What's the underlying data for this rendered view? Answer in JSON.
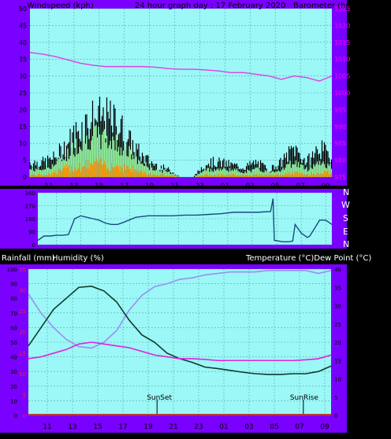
{
  "chart_data": [
    {
      "type": "line",
      "title": "24 hour graph day : 17 February 2020",
      "ylabel_left": "Windspeed (kph)",
      "ylabel_right": "Barometer (hpa)",
      "x_ticks": [
        "11",
        "13",
        "15",
        "17",
        "19",
        "21",
        "23",
        "01",
        "03",
        "05",
        "07",
        "09"
      ],
      "y_ticks_left": [
        0,
        5,
        10,
        15,
        20,
        25,
        30,
        35,
        40,
        45,
        50
      ],
      "y_ticks_right": [
        975,
        980,
        985,
        990,
        995,
        1000,
        1005,
        1010,
        1015,
        1020,
        1025
      ],
      "ylim_left": [
        0,
        50
      ],
      "ylim_right": [
        975,
        1025
      ],
      "grid": true,
      "colors": {
        "plot_bg": "#9cf7f7",
        "frame": "#7a00ff",
        "gust": "#000000",
        "avg": "#90ee90",
        "wind": "#ff9900",
        "baro": "#e040e0",
        "right_axis": "#ff00ff"
      },
      "series": [
        {
          "values_hours": [
            0,
            1,
            2,
            3,
            4,
            5,
            6,
            7,
            8,
            9,
            10,
            11,
            12,
            13,
            14,
            15,
            16,
            17,
            18,
            19,
            20,
            21,
            22,
            23,
            24
          ],
          "gust_env": [
            6,
            6,
            8,
            14,
            20,
            24,
            24,
            22,
            14,
            8,
            5,
            3,
            0,
            0,
            6,
            6,
            5,
            4,
            6,
            3,
            6,
            12,
            6,
            12,
            8
          ],
          "avg_env": [
            3,
            3,
            5,
            9,
            14,
            16,
            15,
            13,
            9,
            5,
            3,
            2,
            0,
            0,
            3,
            3,
            3,
            2,
            3,
            2,
            3,
            6,
            3,
            6,
            4
          ],
          "wind_env": [
            1,
            1,
            2,
            4,
            5,
            6,
            6,
            5,
            4,
            2,
            1,
            1,
            0,
            0,
            1,
            1,
            1,
            1,
            1,
            1,
            1,
            2,
            1,
            2,
            2
          ]
        },
        {
          "hours": [
            0,
            1,
            2,
            3,
            4,
            5,
            6,
            7,
            8,
            9,
            10,
            11,
            12,
            13,
            14,
            15,
            16,
            17,
            18,
            19,
            20,
            21,
            22,
            23,
            24
          ],
          "values": [
            1012.0,
            1011.5,
            1010.8,
            1009.8,
            1008.8,
            1008.2,
            1007.8,
            1007.8,
            1007.8,
            1007.8,
            1007.6,
            1007.2,
            1007.0,
            1007.0,
            1006.8,
            1006.5,
            1006.0,
            1006.0,
            1005.5,
            1005.0,
            1004.0,
            1005.0,
            1004.5,
            1003.5,
            1005.0
          ]
        }
      ]
    },
    {
      "type": "line",
      "title": "",
      "direction_labels": [
        "N",
        "W",
        "S",
        "E",
        "N"
      ],
      "y_ticks": [
        360,
        270,
        180,
        90,
        0
      ],
      "ylim": [
        0,
        360
      ],
      "x_ticks": [
        "11",
        "13",
        "15",
        "17",
        "19",
        "21",
        "23",
        "01",
        "03",
        "05",
        "07",
        "09"
      ],
      "series": [
        {
          "hours": [
            0,
            0.5,
            1,
            1.5,
            2,
            2.5,
            3,
            3.5,
            4,
            4.5,
            5,
            5.5,
            6,
            6.5,
            7,
            8,
            9,
            10,
            11,
            12,
            13,
            14,
            15,
            16,
            17,
            18,
            19,
            19.2,
            19.3,
            20,
            20.5,
            20.8,
            21,
            21.5,
            22,
            22.2,
            23,
            23.5,
            24
          ],
          "values": [
            30,
            60,
            60,
            65,
            65,
            70,
            180,
            200,
            190,
            180,
            170,
            150,
            140,
            140,
            155,
            190,
            200,
            200,
            200,
            205,
            205,
            210,
            215,
            225,
            225,
            225,
            230,
            320,
            30,
            20,
            20,
            25,
            140,
            80,
            50,
            60,
            170,
            170,
            140
          ]
        }
      ]
    },
    {
      "type": "line",
      "title": "",
      "ylabel_left_1": "Rainfall (mm)",
      "ylabel_left_2": "Humidity (%)",
      "ylabel_right": "Temperature (°C)Dew Point (°C)",
      "y_ticks_left": [
        0,
        10,
        20,
        30,
        40,
        50,
        60,
        70,
        80,
        90,
        100
      ],
      "y_ticks_rain": [
        0,
        5,
        10,
        15,
        20,
        25,
        30,
        35
      ],
      "y_ticks_right": [
        0,
        5,
        10,
        15,
        20,
        25,
        30,
        35,
        40
      ],
      "ylim_left": [
        0,
        100
      ],
      "ylim_right": [
        0,
        40
      ],
      "x_ticks": [
        "11",
        "13",
        "15",
        "17",
        "19",
        "21",
        "23",
        "01",
        "03",
        "05",
        "07",
        "09"
      ],
      "annotations": [
        {
          "text": "SunSet",
          "hour": 10.2
        },
        {
          "text": "SunRise",
          "hour": 21.8
        }
      ],
      "series": [
        {
          "hours": [
            0,
            1,
            2,
            3,
            4,
            5,
            6,
            7,
            8,
            9,
            10,
            11,
            12,
            13,
            14,
            15,
            16,
            17,
            18,
            19,
            20,
            21,
            22,
            23,
            24
          ],
          "values": [
            83,
            70,
            60,
            52,
            47,
            46,
            50,
            58,
            72,
            82,
            88,
            90,
            93,
            94,
            96,
            97,
            98,
            98,
            98,
            99,
            99,
            99,
            99,
            97,
            99
          ]
        },
        {
          "hours": [
            0,
            1,
            2,
            3,
            4,
            5,
            6,
            7,
            8,
            9,
            10,
            11,
            12,
            13,
            14,
            15,
            16,
            17,
            18,
            19,
            20,
            21,
            22,
            23,
            24
          ],
          "values": [
            19,
            24,
            29,
            32,
            35,
            35.3,
            34,
            31,
            26,
            22,
            20,
            17,
            15.5,
            14.5,
            13.2,
            12.8,
            12.3,
            11.8,
            11.4,
            11.2,
            11.2,
            11.4,
            11.4,
            12,
            13.5
          ]
        },
        {
          "hours": [
            0,
            1,
            2,
            3,
            4,
            5,
            6,
            7,
            8,
            9,
            10,
            11,
            12,
            13,
            14,
            15,
            16,
            17,
            18,
            19,
            20,
            21,
            22,
            23,
            24
          ],
          "values": [
            15.5,
            16,
            17,
            18,
            19.5,
            20,
            19.5,
            19,
            18.5,
            17.5,
            16.5,
            16,
            15.5,
            15.5,
            15.3,
            15,
            15,
            15,
            15,
            15,
            15,
            15,
            15.2,
            15.5,
            16.5
          ]
        },
        {
          "hours": [
            0,
            24
          ],
          "values": [
            0,
            0
          ]
        }
      ]
    }
  ]
}
